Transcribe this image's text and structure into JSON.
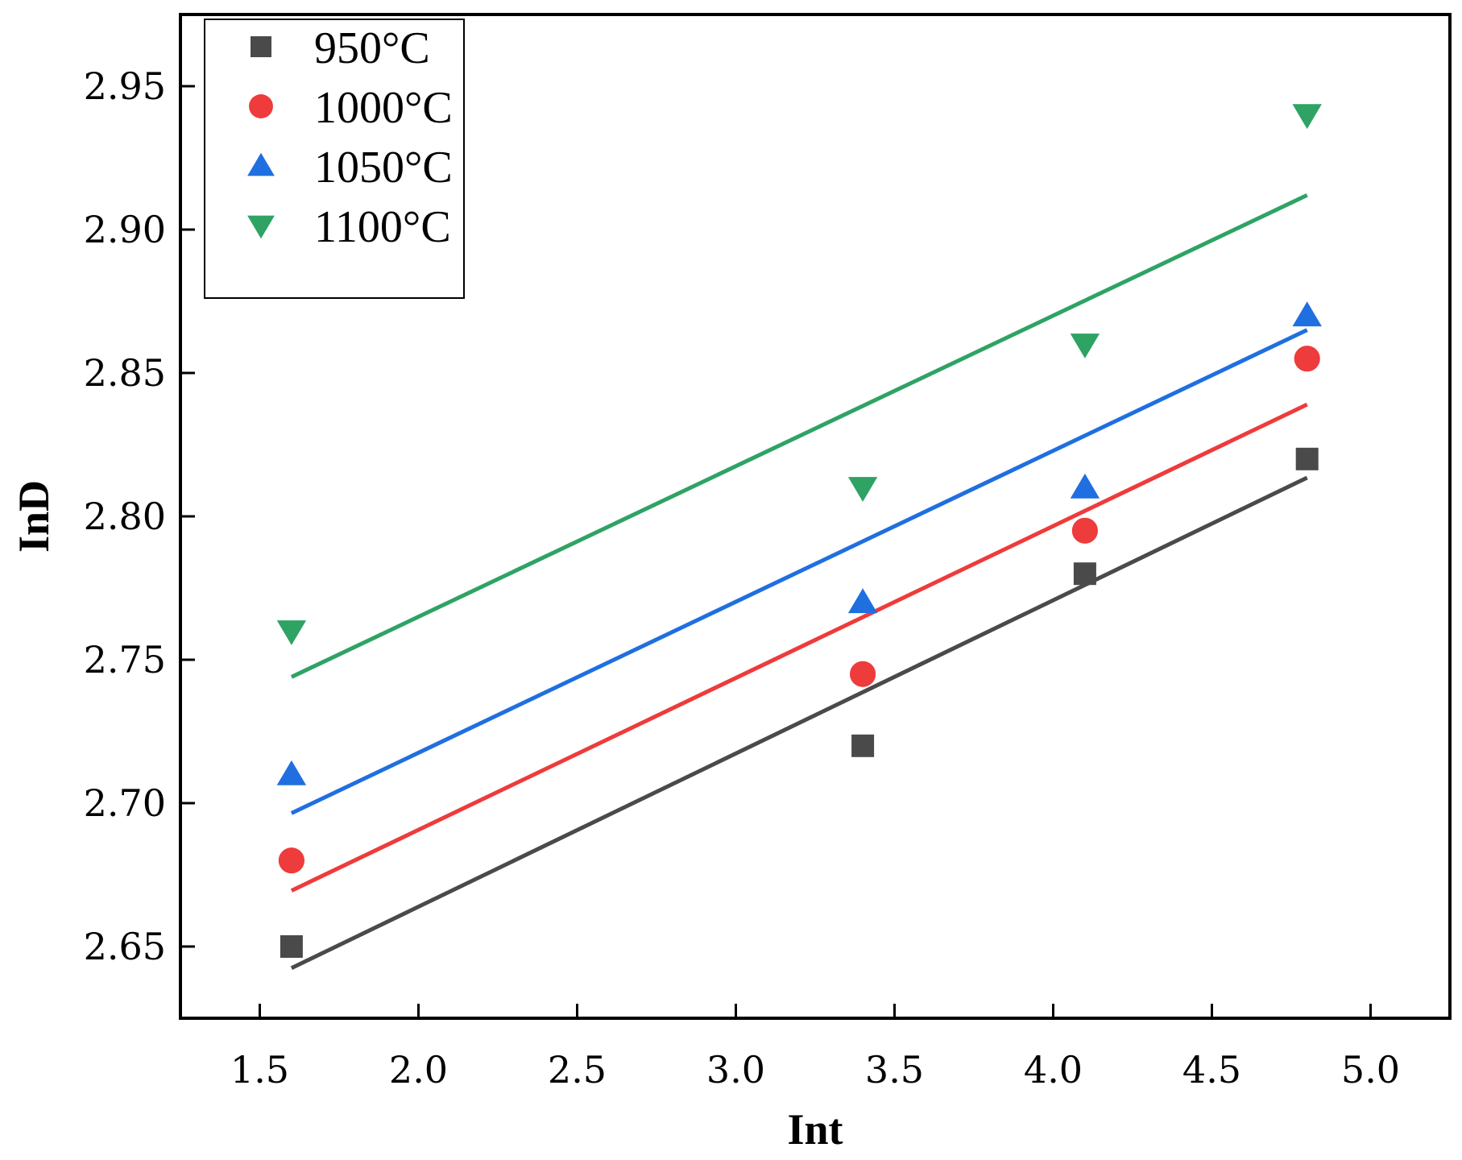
{
  "chart_data": {
    "type": "scatter",
    "xlabel": "Int",
    "ylabel": "InD",
    "xlim": [
      1.25,
      5.25
    ],
    "ylim": [
      2.625,
      2.975
    ],
    "xticks": [
      1.5,
      2.0,
      2.5,
      3.0,
      3.5,
      4.0,
      4.5,
      5.0
    ],
    "xtick_labels": [
      "1.5",
      "2.0",
      "2.5",
      "3.0",
      "3.5",
      "4.0",
      "4.5",
      "5.0"
    ],
    "yticks": [
      2.65,
      2.7,
      2.75,
      2.8,
      2.85,
      2.9,
      2.95
    ],
    "ytick_labels": [
      "2.65",
      "2.70",
      "2.75",
      "2.80",
      "2.85",
      "2.90",
      "2.95"
    ],
    "legend_position": "top-left",
    "series": [
      {
        "name": "950°C",
        "marker": "square",
        "color": "#4a4a4a",
        "x": [
          1.6,
          3.4,
          4.1,
          4.8
        ],
        "y": [
          2.65,
          2.72,
          2.78,
          2.82
        ],
        "fit": {
          "x": [
            1.6,
            4.8
          ],
          "y": [
            2.6425,
            2.8135
          ]
        }
      },
      {
        "name": "1000°C",
        "marker": "circle",
        "color": "#ee3b3b",
        "x": [
          1.6,
          3.4,
          4.1,
          4.8
        ],
        "y": [
          2.68,
          2.745,
          2.795,
          2.855
        ],
        "fit": {
          "x": [
            1.6,
            4.8
          ],
          "y": [
            2.6695,
            2.839
          ]
        }
      },
      {
        "name": "1050°C",
        "marker": "triangle-up",
        "color": "#1f6fe0",
        "x": [
          1.6,
          3.4,
          4.1,
          4.8
        ],
        "y": [
          2.71,
          2.77,
          2.81,
          2.87
        ],
        "fit": {
          "x": [
            1.6,
            4.8
          ],
          "y": [
            2.6965,
            2.865
          ]
        }
      },
      {
        "name": "1100°C",
        "marker": "triangle-down",
        "color": "#2ea364",
        "x": [
          1.6,
          3.4,
          4.1,
          4.8
        ],
        "y": [
          2.76,
          2.81,
          2.86,
          2.94
        ],
        "fit": {
          "x": [
            1.6,
            4.8
          ],
          "y": [
            2.744,
            2.912
          ]
        }
      }
    ]
  }
}
